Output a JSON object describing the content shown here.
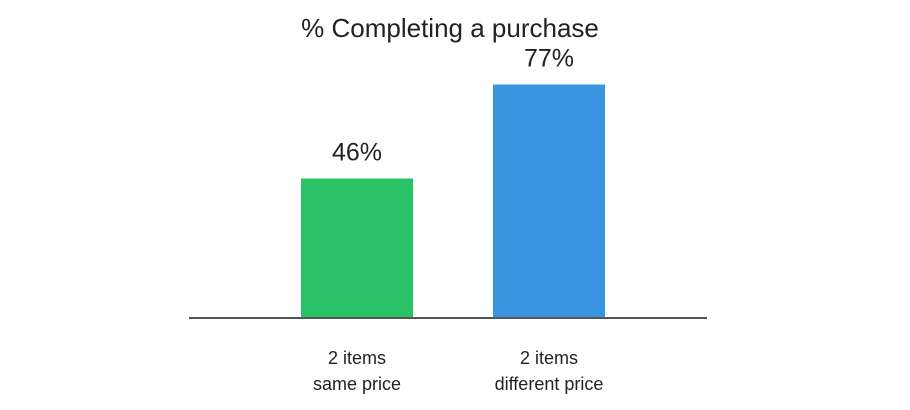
{
  "chart_data": {
    "type": "bar",
    "title": "% Completing a purchase",
    "xlabel": "",
    "ylabel": "",
    "categories": [
      [
        "2 items",
        "same price"
      ],
      [
        "2 items",
        "different price"
      ]
    ],
    "values": [
      46,
      77
    ],
    "data_labels": [
      "46%",
      "77%"
    ],
    "colors": [
      "#2ac167",
      "#3a95e0"
    ],
    "ylim": [
      0,
      100
    ],
    "grid": false,
    "legend": "none"
  }
}
